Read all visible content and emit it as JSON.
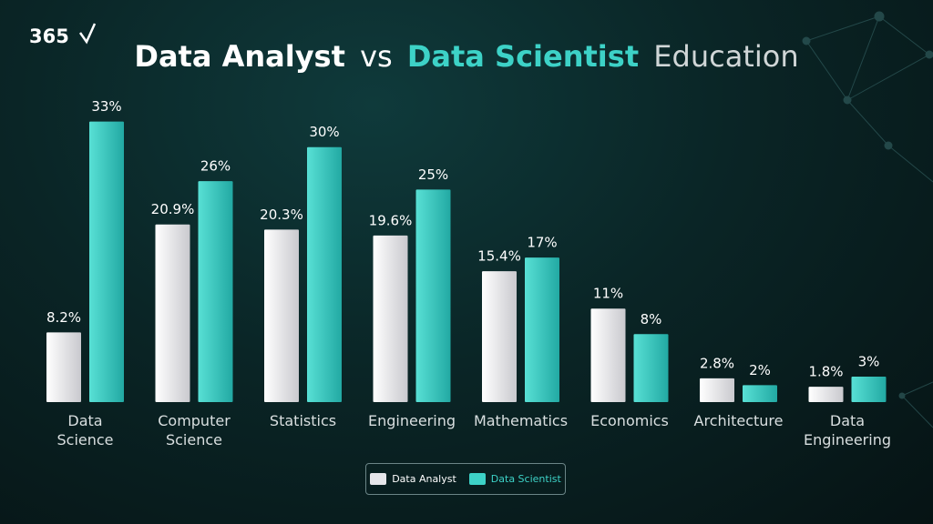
{
  "logo": "365",
  "chart_data": {
    "type": "bar",
    "title_parts": [
      "Data Analyst",
      "vs",
      "Data Scientist",
      "Education"
    ],
    "categories": [
      "Data Science",
      "Computer Science",
      "Statistics",
      "Engineering",
      "Mathematics",
      "Economics",
      "Architecture",
      "Data Engineering"
    ],
    "series": [
      {
        "name": "Data Analyst",
        "color": "#e6e6ea",
        "values": [
          8.2,
          20.9,
          20.3,
          19.6,
          15.4,
          11,
          2.8,
          1.8
        ],
        "value_labels": [
          "8.2%",
          "20.9%",
          "20.3%",
          "19.6%",
          "15.4%",
          "11%",
          "2.8%",
          "1.8%"
        ]
      },
      {
        "name": "Data Scientist",
        "color": "#3dd2c7",
        "values": [
          33,
          26,
          30,
          25,
          17,
          8,
          2,
          3
        ],
        "value_labels": [
          "33%",
          "26%",
          "30%",
          "25%",
          "17%",
          "8%",
          "2%",
          "3%"
        ]
      }
    ],
    "ylim": [
      0,
      35
    ]
  }
}
